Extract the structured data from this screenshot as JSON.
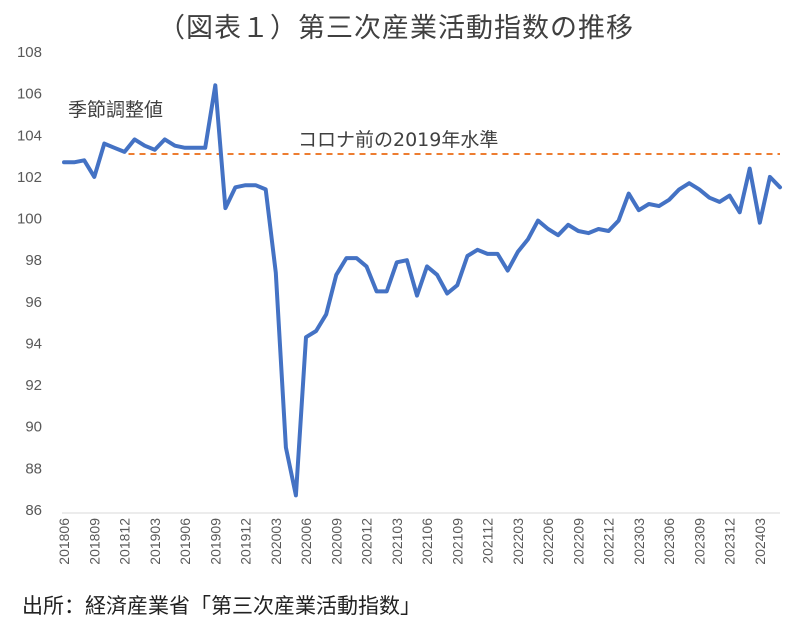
{
  "chart_data": {
    "type": "line",
    "title": "（図表１）第三次産業活動指数の推移",
    "source": "出所：経済産業省「第三次産業活動指数」",
    "ylim": [
      86,
      108
    ],
    "yticks": [
      86,
      88,
      90,
      92,
      94,
      96,
      98,
      100,
      102,
      104,
      106,
      108
    ],
    "grid": false,
    "legend": "none",
    "tick_labels": [
      "201806",
      "201809",
      "201812",
      "201903",
      "201906",
      "201909",
      "201912",
      "202003",
      "202006",
      "202009",
      "202012",
      "202103",
      "202106",
      "202109",
      "202112",
      "202203",
      "202206",
      "202209",
      "202212",
      "202303",
      "202306",
      "202309",
      "202312",
      "202403"
    ],
    "series": [
      {
        "name": "季節調整値",
        "color": "#4472C4",
        "x": [
          "201806",
          "201807",
          "201808",
          "201809",
          "201810",
          "201811",
          "201812",
          "201901",
          "201902",
          "201903",
          "201904",
          "201905",
          "201906",
          "201907",
          "201908",
          "201909",
          "201910",
          "201911",
          "201912",
          "202001",
          "202002",
          "202003",
          "202004",
          "202005",
          "202006",
          "202007",
          "202008",
          "202009",
          "202010",
          "202011",
          "202012",
          "202101",
          "202102",
          "202103",
          "202104",
          "202105",
          "202106",
          "202107",
          "202108",
          "202109",
          "202110",
          "202111",
          "202112",
          "202201",
          "202202",
          "202203",
          "202204",
          "202205",
          "202206",
          "202207",
          "202208",
          "202209",
          "202210",
          "202211",
          "202212",
          "202301",
          "202302",
          "202303",
          "202304",
          "202305",
          "202306",
          "202307",
          "202308",
          "202309",
          "202310",
          "202311",
          "202312",
          "202401",
          "202402",
          "202403",
          "202404",
          "202405"
        ],
        "values": [
          102.7,
          102.7,
          102.8,
          102.0,
          103.6,
          103.4,
          103.2,
          103.8,
          103.5,
          103.3,
          103.8,
          103.5,
          103.4,
          103.4,
          103.4,
          106.4,
          100.5,
          101.5,
          101.6,
          101.6,
          101.4,
          97.4,
          89.0,
          86.7,
          94.3,
          94.6,
          95.4,
          97.3,
          98.1,
          98.1,
          97.7,
          96.5,
          96.5,
          97.9,
          98.0,
          96.3,
          97.7,
          97.3,
          96.4,
          96.8,
          98.2,
          98.5,
          98.3,
          98.3,
          97.5,
          98.4,
          99.0,
          99.9,
          99.5,
          99.2,
          99.7,
          99.4,
          99.3,
          99.5,
          99.4,
          99.9,
          101.2,
          100.4,
          100.7,
          100.6,
          100.9,
          101.4,
          101.7,
          101.4,
          101.0,
          100.8,
          101.1,
          100.3,
          102.4,
          99.8,
          102.0,
          101.5
        ]
      }
    ],
    "reference_line": {
      "label": "コロナ前の2019年水準",
      "value": 103.1,
      "color": "#ED7D31"
    }
  }
}
